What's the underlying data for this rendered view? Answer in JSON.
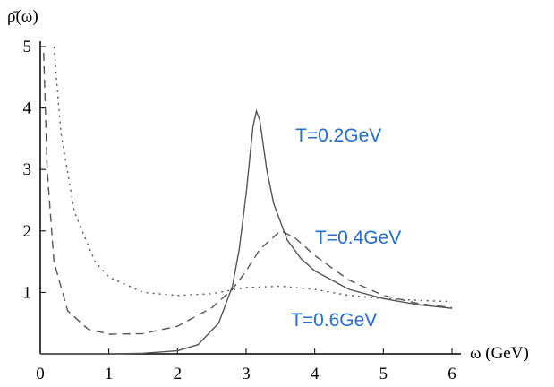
{
  "chart_data": {
    "type": "line",
    "y_label": "ρ̄(ω)",
    "x_label": "ω (GeV)",
    "xlim": [
      0,
      6
    ],
    "ylim": [
      0,
      5
    ],
    "xticks": [
      0,
      1,
      2,
      3,
      4,
      5,
      6
    ],
    "yticks": [
      1,
      2,
      3,
      4,
      5
    ],
    "label_color": "#1f6fd6",
    "series": [
      {
        "name": "T=0.2GeV",
        "color": "#555555",
        "dash": "none",
        "x": [
          0,
          0.5,
          1,
          1.5,
          2,
          2.3,
          2.6,
          2.8,
          2.9,
          3.0,
          3.1,
          3.15,
          3.2,
          3.3,
          3.4,
          3.6,
          3.8,
          4,
          4.5,
          5,
          5.5,
          6
        ],
        "values": [
          0,
          0,
          0,
          0.01,
          0.05,
          0.15,
          0.5,
          1.1,
          1.7,
          2.6,
          3.7,
          3.95,
          3.8,
          3.0,
          2.45,
          1.85,
          1.55,
          1.35,
          1.05,
          0.9,
          0.8,
          0.74
        ]
      },
      {
        "name": "T=0.4GeV",
        "color": "#555555",
        "dash": "9 6",
        "x": [
          0.05,
          0.1,
          0.2,
          0.4,
          0.7,
          1,
          1.5,
          2,
          2.5,
          2.8,
          3,
          3.2,
          3.5,
          3.7,
          4,
          4.5,
          5,
          5.5,
          6
        ],
        "values": [
          4.9,
          3.0,
          1.5,
          0.7,
          0.4,
          0.32,
          0.33,
          0.45,
          0.75,
          1.05,
          1.35,
          1.7,
          2.0,
          1.9,
          1.6,
          1.2,
          0.95,
          0.82,
          0.75
        ]
      },
      {
        "name": "T=0.6GeV",
        "color": "#555555",
        "dash": "2 5",
        "x": [
          0.2,
          0.3,
          0.5,
          0.8,
          1,
          1.5,
          2,
          2.5,
          3,
          3.5,
          4,
          4.5,
          5,
          5.5,
          6
        ],
        "values": [
          5.0,
          3.6,
          2.3,
          1.5,
          1.25,
          1.0,
          0.95,
          0.98,
          1.08,
          1.1,
          1.05,
          0.95,
          0.9,
          0.87,
          0.85
        ]
      }
    ]
  }
}
